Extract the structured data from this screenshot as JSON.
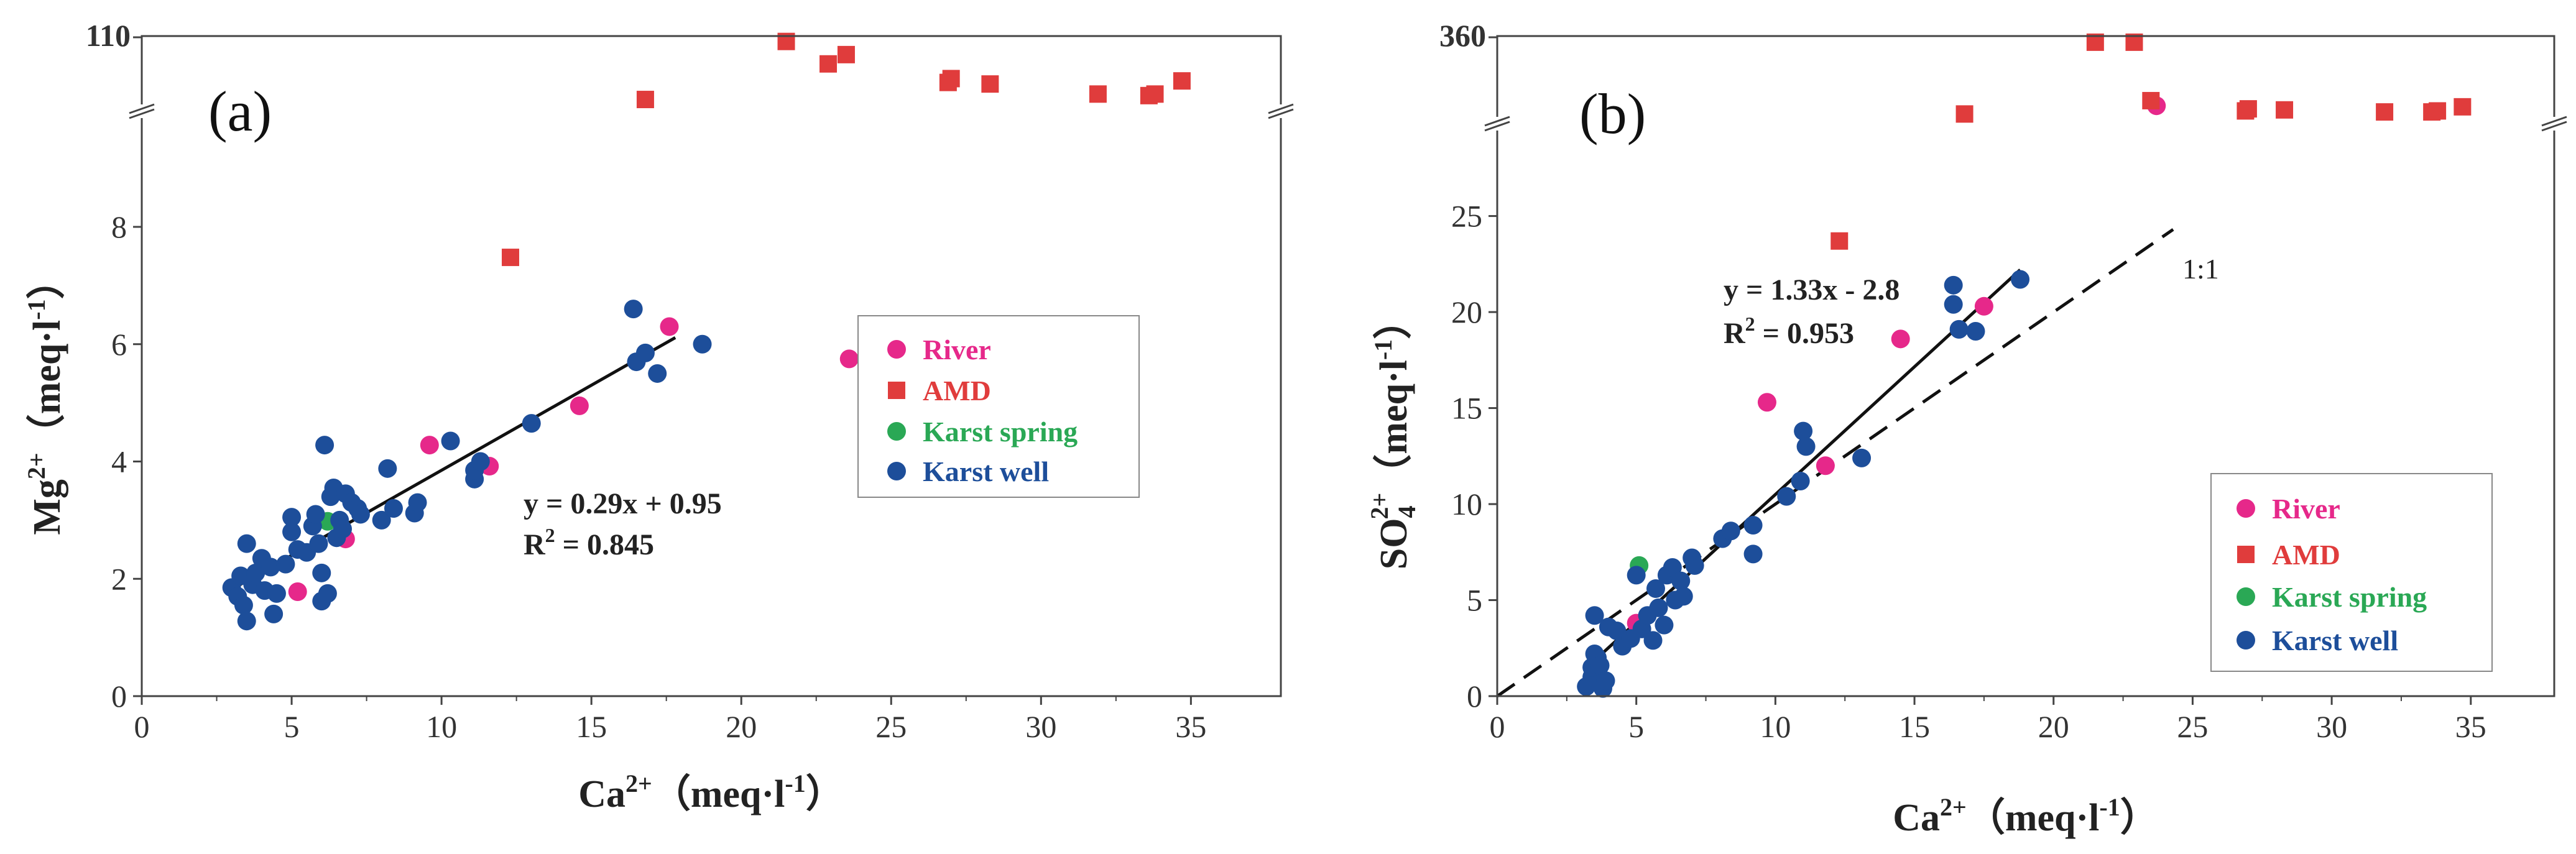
{
  "chart_data": [
    {
      "type": "scatter",
      "panel_label": "(a)",
      "xlabel_main": "Ca",
      "xlabel_sup": "2+",
      "xlabel_unit_open": "（meq·l",
      "xlabel_unit_sup": "-1",
      "xlabel_unit_close": "）",
      "ylabel_main": "Mg",
      "ylabel_sup": "2+",
      "ylabel_unit_open": "（meq·l",
      "ylabel_unit_sup": "-1",
      "ylabel_unit_close": "）",
      "xlim": [
        0,
        38
      ],
      "ylim": [
        0,
        9.6
      ],
      "x_ticks": [
        "0",
        "5",
        "10",
        "15",
        "20",
        "25",
        "30",
        "35"
      ],
      "y_ticks": [
        "0",
        "2",
        "4",
        "6",
        "8"
      ],
      "y_break_label": "110",
      "y_break_range": [
        101,
        110
      ],
      "equation": "y = 0.29x + 0.95",
      "r2_main": "R",
      "r2_sup": "2",
      "r2_value": " = 0.845",
      "fit": {
        "slope": 0.29,
        "intercept": 0.95,
        "x_range": [
          2.9,
          17.8
        ]
      },
      "legend": [
        {
          "label": "River",
          "color": "#e6288a",
          "marker": "circle"
        },
        {
          "label": "AMD",
          "color": "#e03c3c",
          "marker": "square"
        },
        {
          "label": "Karst spring",
          "color": "#2aa855",
          "marker": "circle"
        },
        {
          "label": "Karst well",
          "color": "#1d4e9a",
          "marker": "circle"
        }
      ],
      "series": [
        {
          "name": "River",
          "color": "#e6288a",
          "marker": "circle",
          "points": [
            [
              5.2,
              1.78
            ],
            [
              6.8,
              2.68
            ],
            [
              9.6,
              4.28
            ],
            [
              11.6,
              3.92
            ],
            [
              14.6,
              4.95
            ],
            [
              17.6,
              6.3
            ],
            [
              23.6,
              5.75
            ]
          ]
        },
        {
          "name": "AMD",
          "color": "#e03c3c",
          "marker": "square",
          "points": [
            [
              12.3,
              7.48
            ]
          ]
        },
        {
          "name": "AMD (above break)",
          "color": "#e03c3c",
          "marker": "square",
          "broken": true,
          "points": [
            [
              16.8,
              101.8
            ],
            [
              21.5,
              109.3
            ],
            [
              22.9,
              106.4
            ],
            [
              23.5,
              107.6
            ],
            [
              26.9,
              104.0
            ],
            [
              27.0,
              104.5
            ],
            [
              28.3,
              103.8
            ],
            [
              31.9,
              102.5
            ],
            [
              33.6,
              102.3
            ],
            [
              33.8,
              102.5
            ],
            [
              34.7,
              104.2
            ]
          ]
        },
        {
          "name": "Karst spring",
          "color": "#2aa855",
          "marker": "circle",
          "points": [
            [
              6.2,
              2.98
            ]
          ]
        },
        {
          "name": "Karst well",
          "color": "#1d4e9a",
          "marker": "circle",
          "points": [
            [
              3.0,
              1.85
            ],
            [
              3.2,
              1.7
            ],
            [
              3.3,
              2.05
            ],
            [
              3.4,
              1.55
            ],
            [
              3.5,
              2.6
            ],
            [
              3.5,
              1.28
            ],
            [
              3.7,
              1.9
            ],
            [
              3.8,
              2.1
            ],
            [
              4.0,
              2.35
            ],
            [
              4.1,
              1.8
            ],
            [
              4.3,
              2.2
            ],
            [
              4.4,
              1.4
            ],
            [
              4.5,
              1.75
            ],
            [
              4.8,
              2.25
            ],
            [
              5.0,
              2.8
            ],
            [
              5.0,
              3.05
            ],
            [
              5.2,
              2.5
            ],
            [
              5.5,
              2.45
            ],
            [
              5.7,
              2.9
            ],
            [
              5.8,
              3.1
            ],
            [
              5.9,
              2.6
            ],
            [
              6.0,
              2.1
            ],
            [
              6.0,
              1.62
            ],
            [
              6.1,
              4.28
            ],
            [
              6.2,
              1.75
            ],
            [
              6.3,
              3.4
            ],
            [
              6.4,
              3.55
            ],
            [
              6.5,
              2.7
            ],
            [
              6.6,
              3.0
            ],
            [
              6.7,
              2.85
            ],
            [
              6.8,
              3.45
            ],
            [
              7.0,
              3.3
            ],
            [
              7.2,
              3.2
            ],
            [
              7.3,
              3.1
            ],
            [
              8.0,
              3.0
            ],
            [
              8.2,
              3.88
            ],
            [
              8.4,
              3.2
            ],
            [
              9.1,
              3.12
            ],
            [
              9.2,
              3.3
            ],
            [
              10.3,
              4.35
            ],
            [
              11.1,
              3.7
            ],
            [
              11.1,
              3.85
            ],
            [
              11.3,
              4.0
            ],
            [
              13.0,
              4.65
            ],
            [
              16.4,
              6.6
            ],
            [
              16.5,
              5.7
            ],
            [
              16.8,
              5.85
            ],
            [
              17.2,
              5.5
            ],
            [
              18.7,
              6.0
            ]
          ]
        }
      ]
    },
    {
      "type": "scatter",
      "panel_label": "(b)",
      "xlabel_main": "Ca",
      "xlabel_sup": "2+",
      "xlabel_unit_open": "（meq·l",
      "xlabel_unit_sup": "-1",
      "xlabel_unit_close": "）",
      "ylabel_main": "SO",
      "ylabel_sub": "4",
      "ylabel_sup": "2+",
      "ylabel_unit_open": "（meq·l",
      "ylabel_unit_sup": "-1",
      "ylabel_unit_close": "）",
      "xlim": [
        0,
        38
      ],
      "ylim": [
        0,
        29
      ],
      "x_ticks": [
        "0",
        "5",
        "10",
        "15",
        "20",
        "25",
        "30",
        "35"
      ],
      "y_ticks": [
        "0",
        "5",
        "10",
        "15",
        "20",
        "25"
      ],
      "y_break_label": "360",
      "y_break_range": [
        320,
        360
      ],
      "equation": "y = 1.33x - 2.8",
      "r2_main": "R",
      "r2_sup": "2",
      "r2_value": " = 0.953",
      "fit": {
        "slope": 1.33,
        "intercept": -2.8,
        "x_range": [
          3.2,
          18.8
        ]
      },
      "reference_line": {
        "label": "1:1",
        "x_range": [
          0,
          24.3
        ]
      },
      "legend": [
        {
          "label": "River",
          "color": "#e6288a",
          "marker": "circle"
        },
        {
          "label": "AMD",
          "color": "#e03c3c",
          "marker": "square"
        },
        {
          "label": "Karst spring",
          "color": "#2aa855",
          "marker": "circle"
        },
        {
          "label": "Karst well",
          "color": "#1d4e9a",
          "marker": "circle"
        }
      ],
      "series": [
        {
          "name": "River",
          "color": "#e6288a",
          "marker": "circle",
          "points": [
            [
              5.0,
              3.8
            ],
            [
              9.7,
              15.3
            ],
            [
              11.8,
              12.0
            ],
            [
              14.5,
              18.6
            ],
            [
              17.5,
              20.3
            ]
          ]
        },
        {
          "name": "River (above break)",
          "color": "#e6288a",
          "marker": "circle",
          "broken": true,
          "points": [
            [
              23.7,
              326.0
            ]
          ]
        },
        {
          "name": "AMD",
          "color": "#e03c3c",
          "marker": "square",
          "points": [
            [
              12.3,
              23.7
            ]
          ]
        },
        {
          "name": "AMD (above break)",
          "color": "#e03c3c",
          "marker": "square",
          "broken": true,
          "points": [
            [
              16.8,
              322.0
            ],
            [
              21.5,
              357.0
            ],
            [
              22.9,
              357.0
            ],
            [
              23.5,
              328.5
            ],
            [
              26.9,
              323.5
            ],
            [
              27.0,
              324.5
            ],
            [
              28.3,
              324.0
            ],
            [
              31.9,
              323.0
            ],
            [
              33.6,
              323.0
            ],
            [
              33.8,
              323.5
            ],
            [
              34.7,
              325.5
            ]
          ]
        },
        {
          "name": "Karst spring",
          "color": "#2aa855",
          "marker": "circle",
          "points": [
            [
              5.1,
              6.8
            ]
          ]
        },
        {
          "name": "Karst well",
          "color": "#1d4e9a",
          "marker": "circle",
          "points": [
            [
              3.2,
              0.5
            ],
            [
              3.4,
              1.0
            ],
            [
              3.4,
              1.5
            ],
            [
              3.5,
              2.2
            ],
            [
              3.5,
              4.2
            ],
            [
              3.6,
              2.0
            ],
            [
              3.7,
              1.6
            ],
            [
              3.8,
              0.4
            ],
            [
              3.9,
              0.8
            ],
            [
              4.0,
              3.6
            ],
            [
              4.3,
              3.4
            ],
            [
              4.5,
              2.6
            ],
            [
              4.8,
              3.0
            ],
            [
              5.0,
              6.3
            ],
            [
              5.2,
              3.5
            ],
            [
              5.4,
              4.2
            ],
            [
              5.6,
              2.9
            ],
            [
              5.7,
              5.6
            ],
            [
              5.8,
              4.6
            ],
            [
              6.0,
              3.7
            ],
            [
              6.1,
              6.3
            ],
            [
              6.3,
              6.7
            ],
            [
              6.4,
              5.0
            ],
            [
              6.6,
              6.0
            ],
            [
              6.7,
              5.2
            ],
            [
              7.0,
              7.2
            ],
            [
              7.1,
              6.8
            ],
            [
              8.1,
              8.2
            ],
            [
              8.4,
              8.6
            ],
            [
              9.2,
              7.4
            ],
            [
              9.2,
              8.9
            ],
            [
              10.4,
              10.4
            ],
            [
              10.9,
              11.2
            ],
            [
              11.0,
              13.8
            ],
            [
              11.1,
              13.0
            ],
            [
              13.1,
              12.4
            ],
            [
              16.4,
              21.4
            ],
            [
              16.4,
              20.4
            ],
            [
              16.6,
              19.1
            ],
            [
              17.2,
              19.0
            ],
            [
              18.8,
              21.7
            ]
          ]
        }
      ]
    }
  ]
}
